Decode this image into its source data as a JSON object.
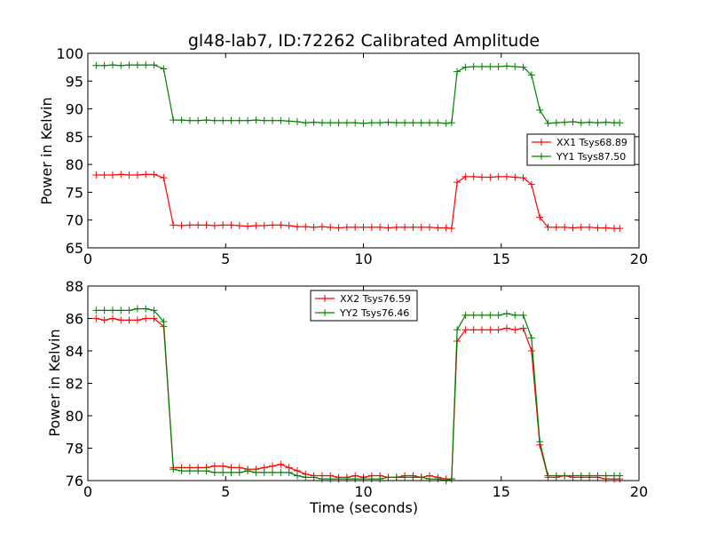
{
  "chart_data": [
    {
      "type": "line",
      "title": "gl48-lab7, ID:72262 Calibrated Amplitude",
      "xlabel": "",
      "ylabel": "Power in Kelvin",
      "xlim": [
        0,
        20
      ],
      "ylim": [
        65,
        100
      ],
      "xticks": [
        0,
        5,
        10,
        15,
        20
      ],
      "yticks": [
        65,
        70,
        75,
        80,
        85,
        90,
        95,
        100
      ],
      "grid": false,
      "legend_position": "center-right",
      "series": [
        {
          "name": "XX1 Tsys68.89",
          "color": "#ff0000",
          "x": [
            0.3,
            0.6,
            0.9,
            1.2,
            1.5,
            1.8,
            2.1,
            2.4,
            2.75,
            3.1,
            3.4,
            3.7,
            4.0,
            4.3,
            4.6,
            4.9,
            5.2,
            5.5,
            5.8,
            6.1,
            6.4,
            6.7,
            7.0,
            7.3,
            7.6,
            7.9,
            8.2,
            8.5,
            8.8,
            9.1,
            9.4,
            9.7,
            10.0,
            10.3,
            10.6,
            10.9,
            11.2,
            11.5,
            11.8,
            12.1,
            12.4,
            12.7,
            13.0,
            13.2,
            13.4,
            13.7,
            14.0,
            14.3,
            14.6,
            14.9,
            15.2,
            15.5,
            15.8,
            16.1,
            16.4,
            16.7,
            17.0,
            17.3,
            17.6,
            17.9,
            18.2,
            18.5,
            18.8,
            19.1,
            19.3
          ],
          "y": [
            78.1,
            78.1,
            78.1,
            78.2,
            78.1,
            78.1,
            78.2,
            78.2,
            77.6,
            69.1,
            69.0,
            69.1,
            69.1,
            69.1,
            69.0,
            69.1,
            69.1,
            69.0,
            68.9,
            69.0,
            69.0,
            69.1,
            69.1,
            69.0,
            68.8,
            68.8,
            68.7,
            68.8,
            68.7,
            68.6,
            68.7,
            68.7,
            68.7,
            68.7,
            68.7,
            68.6,
            68.7,
            68.7,
            68.7,
            68.7,
            68.7,
            68.6,
            68.6,
            68.5,
            76.8,
            77.8,
            77.8,
            77.7,
            77.7,
            77.8,
            77.8,
            77.7,
            77.6,
            76.4,
            70.5,
            68.7,
            68.7,
            68.7,
            68.6,
            68.7,
            68.7,
            68.6,
            68.6,
            68.5,
            68.5
          ]
        },
        {
          "name": "YY1 Tsys87.50",
          "color": "#008000",
          "x": [
            0.3,
            0.6,
            0.9,
            1.2,
            1.5,
            1.8,
            2.1,
            2.4,
            2.75,
            3.1,
            3.4,
            3.7,
            4.0,
            4.3,
            4.6,
            4.9,
            5.2,
            5.5,
            5.8,
            6.1,
            6.4,
            6.7,
            7.0,
            7.3,
            7.6,
            7.9,
            8.2,
            8.5,
            8.8,
            9.1,
            9.4,
            9.7,
            10.0,
            10.3,
            10.6,
            10.9,
            11.2,
            11.5,
            11.8,
            12.1,
            12.4,
            12.7,
            13.0,
            13.2,
            13.4,
            13.7,
            14.0,
            14.3,
            14.6,
            14.9,
            15.2,
            15.5,
            15.8,
            16.1,
            16.4,
            16.7,
            17.0,
            17.3,
            17.6,
            17.9,
            18.2,
            18.5,
            18.8,
            19.1,
            19.3
          ],
          "y": [
            97.8,
            97.8,
            97.9,
            97.8,
            97.9,
            97.9,
            97.9,
            97.9,
            97.2,
            88.0,
            88.0,
            87.9,
            87.9,
            88.0,
            87.9,
            87.9,
            87.9,
            87.9,
            87.9,
            88.0,
            87.9,
            87.9,
            87.9,
            87.8,
            87.7,
            87.5,
            87.6,
            87.5,
            87.5,
            87.5,
            87.5,
            87.5,
            87.4,
            87.5,
            87.5,
            87.6,
            87.5,
            87.5,
            87.5,
            87.5,
            87.5,
            87.5,
            87.4,
            87.5,
            96.7,
            97.5,
            97.6,
            97.6,
            97.6,
            97.6,
            97.7,
            97.6,
            97.5,
            96.1,
            89.8,
            87.4,
            87.5,
            87.6,
            87.7,
            87.5,
            87.6,
            87.5,
            87.6,
            87.5,
            87.5
          ]
        }
      ]
    },
    {
      "type": "line",
      "title": "",
      "xlabel": "Time (seconds)",
      "ylabel": "Power in Kelvin",
      "xlim": [
        0,
        20
      ],
      "ylim": [
        76,
        88
      ],
      "xticks": [
        0,
        5,
        10,
        15,
        20
      ],
      "yticks": [
        76,
        78,
        80,
        82,
        84,
        86,
        88
      ],
      "grid": false,
      "legend_position": "top-center",
      "series": [
        {
          "name": "XX2 Tsys76.59",
          "color": "#ff0000",
          "x": [
            0.3,
            0.6,
            0.9,
            1.2,
            1.5,
            1.8,
            2.1,
            2.4,
            2.75,
            3.1,
            3.4,
            3.7,
            4.0,
            4.3,
            4.6,
            4.9,
            5.2,
            5.5,
            5.8,
            6.1,
            6.4,
            6.7,
            7.0,
            7.3,
            7.6,
            7.9,
            8.2,
            8.5,
            8.8,
            9.1,
            9.4,
            9.7,
            10.0,
            10.3,
            10.6,
            10.9,
            11.2,
            11.5,
            11.8,
            12.1,
            12.4,
            12.7,
            13.0,
            13.2,
            13.4,
            13.7,
            14.0,
            14.3,
            14.6,
            14.9,
            15.2,
            15.5,
            15.8,
            16.1,
            16.4,
            16.7,
            17.0,
            17.3,
            17.6,
            17.9,
            18.2,
            18.5,
            18.8,
            19.1,
            19.3
          ],
          "y": [
            86.0,
            85.9,
            86.0,
            85.9,
            85.9,
            85.9,
            86.0,
            86.0,
            85.5,
            76.8,
            76.8,
            76.8,
            76.8,
            76.8,
            76.9,
            76.9,
            76.8,
            76.8,
            76.7,
            76.7,
            76.8,
            76.9,
            77.0,
            76.8,
            76.6,
            76.4,
            76.3,
            76.3,
            76.3,
            76.2,
            76.2,
            76.3,
            76.2,
            76.3,
            76.3,
            76.2,
            76.2,
            76.3,
            76.3,
            76.2,
            76.3,
            76.2,
            76.1,
            76.1,
            84.6,
            85.3,
            85.3,
            85.3,
            85.3,
            85.3,
            85.4,
            85.3,
            85.4,
            84.0,
            78.2,
            76.2,
            76.2,
            76.3,
            76.2,
            76.2,
            76.2,
            76.2,
            76.1,
            76.1,
            76.1
          ]
        },
        {
          "name": "YY2 Tsys76.46",
          "color": "#008000",
          "x": [
            0.3,
            0.6,
            0.9,
            1.2,
            1.5,
            1.8,
            2.1,
            2.4,
            2.75,
            3.1,
            3.4,
            3.7,
            4.0,
            4.3,
            4.6,
            4.9,
            5.2,
            5.5,
            5.8,
            6.1,
            6.4,
            6.7,
            7.0,
            7.3,
            7.6,
            7.9,
            8.2,
            8.5,
            8.8,
            9.1,
            9.4,
            9.7,
            10.0,
            10.3,
            10.6,
            10.9,
            11.2,
            11.5,
            11.8,
            12.1,
            12.4,
            12.7,
            13.0,
            13.2,
            13.4,
            13.7,
            14.0,
            14.3,
            14.6,
            14.9,
            15.2,
            15.5,
            15.8,
            16.1,
            16.4,
            16.7,
            17.0,
            17.3,
            17.6,
            17.9,
            18.2,
            18.5,
            18.8,
            19.1,
            19.3
          ],
          "y": [
            86.5,
            86.5,
            86.5,
            86.5,
            86.5,
            86.6,
            86.6,
            86.5,
            85.8,
            76.7,
            76.6,
            76.6,
            76.6,
            76.6,
            76.5,
            76.5,
            76.5,
            76.5,
            76.6,
            76.5,
            76.5,
            76.5,
            76.5,
            76.5,
            76.3,
            76.2,
            76.2,
            76.1,
            76.1,
            76.1,
            76.1,
            76.1,
            76.1,
            76.1,
            76.1,
            76.2,
            76.2,
            76.2,
            76.2,
            76.2,
            76.1,
            76.1,
            76.0,
            76.1,
            85.3,
            86.2,
            86.2,
            86.2,
            86.2,
            86.2,
            86.3,
            86.2,
            86.2,
            84.8,
            78.4,
            76.3,
            76.3,
            76.3,
            76.3,
            76.3,
            76.3,
            76.3,
            76.3,
            76.3,
            76.3
          ]
        }
      ]
    }
  ]
}
